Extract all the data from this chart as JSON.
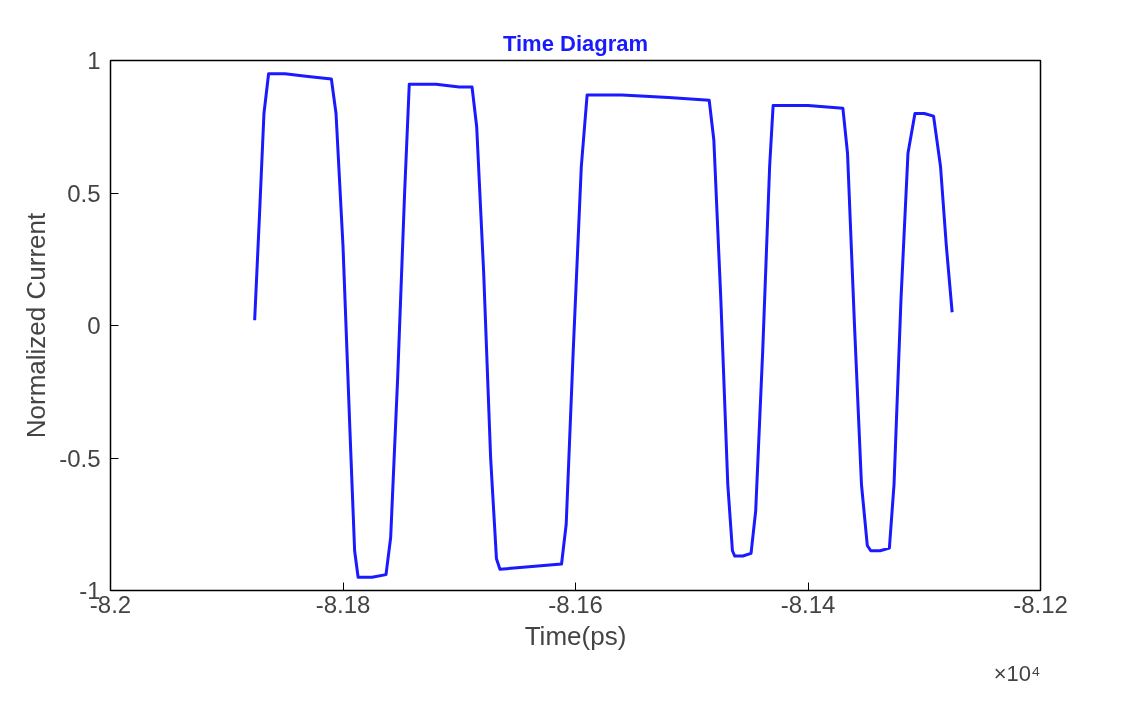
{
  "chart_data": {
    "type": "line",
    "title": "Time Diagram",
    "xlabel": "Time(ps)",
    "ylabel": "Normalized Current",
    "annotations": [
      "×10⁴"
    ],
    "series": [
      {
        "color": "#1a1aff",
        "x": [
          -8.1876,
          -8.1872,
          -8.1868,
          -8.1864,
          -8.185,
          -8.183,
          -8.181,
          -8.1806,
          -8.18,
          -8.1794,
          -8.179,
          -8.1787,
          -8.1775,
          -8.1763,
          -8.1759,
          -8.1753,
          -8.1747,
          -8.1743,
          -8.172,
          -8.17,
          -8.1689,
          -8.1685,
          -8.1679,
          -8.1673,
          -8.1668,
          -8.1665,
          -8.164,
          -8.1612,
          -8.1608,
          -8.1602,
          -8.1595,
          -8.159,
          -8.156,
          -8.152,
          -8.1485,
          -8.1481,
          -8.1475,
          -8.1469,
          -8.1465,
          -8.1463,
          -8.1456,
          -8.1449,
          -8.1445,
          -8.1439,
          -8.1433,
          -8.143,
          -8.14,
          -8.137,
          -8.1366,
          -8.136,
          -8.1354,
          -8.1349,
          -8.1346,
          -8.1338,
          -8.133,
          -8.1326,
          -8.132,
          -8.1314,
          -8.1308,
          -8.13,
          -8.1292,
          -8.1286,
          -8.1281,
          -8.1276
        ],
        "values": [
          0.02,
          0.4,
          0.8,
          0.95,
          0.95,
          0.94,
          0.93,
          0.8,
          0.3,
          -0.4,
          -0.85,
          -0.95,
          -0.95,
          -0.94,
          -0.8,
          -0.2,
          0.5,
          0.91,
          0.91,
          0.9,
          0.9,
          0.75,
          0.2,
          -0.5,
          -0.88,
          -0.92,
          -0.91,
          -0.9,
          -0.75,
          -0.1,
          0.6,
          0.87,
          0.87,
          0.86,
          0.85,
          0.7,
          0.1,
          -0.6,
          -0.85,
          -0.87,
          -0.87,
          -0.86,
          -0.7,
          -0.1,
          0.6,
          0.83,
          0.83,
          0.82,
          0.65,
          0.0,
          -0.6,
          -0.83,
          -0.85,
          -0.85,
          -0.84,
          -0.6,
          0.1,
          0.65,
          0.8,
          0.8,
          0.79,
          0.6,
          0.3,
          0.05
        ]
      }
    ],
    "xlim": [
      -8.2,
      -8.12
    ],
    "xticks": [
      -8.2,
      -8.18,
      -8.16,
      -8.14,
      -8.12
    ],
    "ylim": [
      -1,
      1
    ],
    "yticks": [
      -1,
      -0.5,
      0,
      0.5,
      1
    ],
    "grid": false,
    "marker": "none",
    "line_style": "solid"
  }
}
